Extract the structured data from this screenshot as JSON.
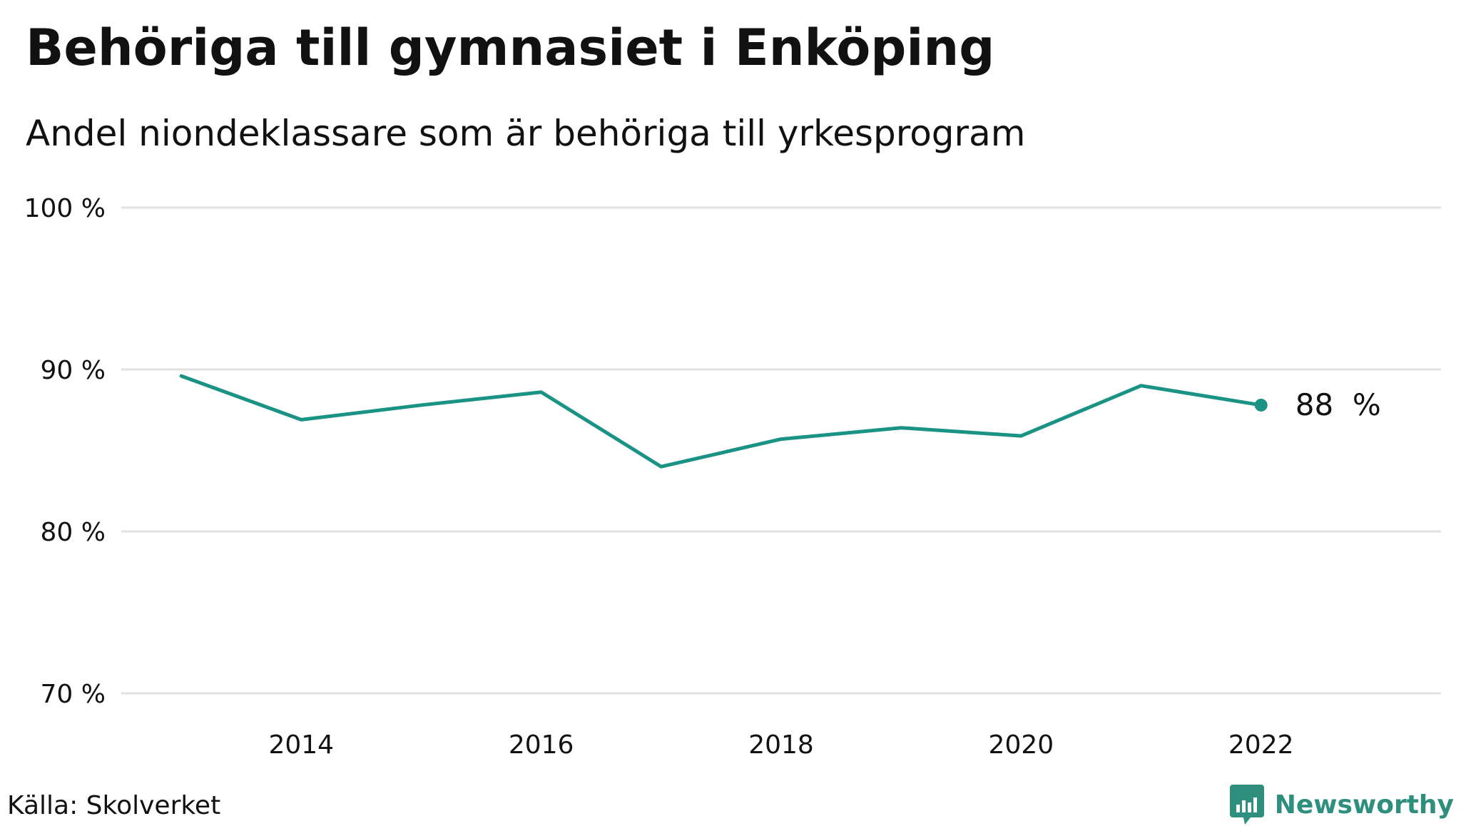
{
  "title": "Behöriga till gymnasiet i Enköping",
  "subtitle": "Andel niondeklassare som är behöriga till yrkesprogram",
  "source": "Källa: Skolverket",
  "brand": {
    "name": "Newsworthy",
    "icon": "bar-chart-speech-bubble-icon",
    "color": "#2f8f7e"
  },
  "colors": {
    "line": "#1a9384",
    "grid": "#e2e2e2",
    "text": "#111111"
  },
  "chart_data": {
    "type": "line",
    "title": "Behöriga till gymnasiet i Enköping",
    "subtitle": "Andel niondeklassare som är behöriga till yrkesprogram",
    "xlabel": "",
    "ylabel": "",
    "x": [
      2013,
      2014,
      2015,
      2016,
      2017,
      2018,
      2019,
      2020,
      2021,
      2022
    ],
    "series": [
      {
        "values": [
          89.6,
          86.9,
          87.8,
          88.6,
          84.0,
          85.7,
          86.4,
          85.9,
          89.0,
          87.8
        ]
      }
    ],
    "xlim": [
      2012.5,
      2023.5
    ],
    "ylim": [
      70,
      100
    ],
    "x_ticks": [
      2014,
      2016,
      2018,
      2020,
      2022
    ],
    "x_tick_labels": [
      "2014",
      "2016",
      "2018",
      "2020",
      "2022"
    ],
    "y_ticks": [
      70,
      80,
      90,
      100
    ],
    "y_tick_labels": [
      "70 %",
      "80 %",
      "90 %",
      "100 %"
    ],
    "last_value_label": "88  %",
    "grid": true,
    "legend": "none"
  }
}
